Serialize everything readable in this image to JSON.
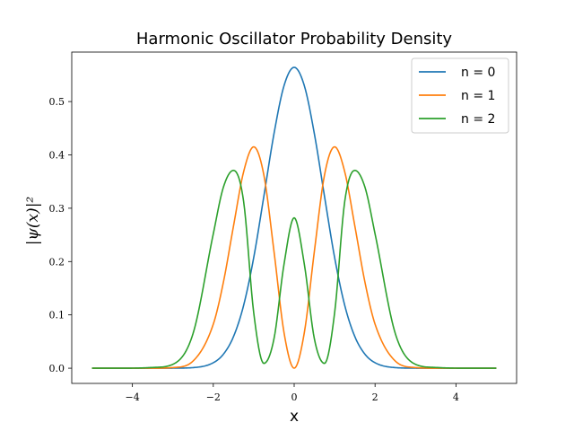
{
  "chart_data": {
    "type": "line",
    "title": "Harmonic Oscillator Probability Density",
    "xlabel": "x",
    "ylabel": "|ψ(x)|²",
    "xlim": [
      -5.5,
      5.5
    ],
    "ylim": [
      -0.0285,
      0.5928
    ],
    "xticks": [
      -4,
      -2,
      0,
      2,
      4
    ],
    "xtick_labels": [
      "−4",
      "−2",
      "0",
      "2",
      "4"
    ],
    "yticks": [
      0.0,
      0.1,
      0.2,
      0.3,
      0.4,
      0.5
    ],
    "ytick_labels": [
      "0.0",
      "0.1",
      "0.2",
      "0.3",
      "0.4",
      "0.5"
    ],
    "grid": false,
    "legend_position": "top-right",
    "x_range": [
      -5,
      5
    ],
    "series": [
      {
        "name": "n = 0",
        "color": "#1f77b4",
        "x": [
          -5,
          -4.5,
          -4,
          -3.5,
          -3,
          -2.5,
          -2,
          -1.75,
          -1.5,
          -1.25,
          -1,
          -0.75,
          -0.5,
          -0.25,
          0,
          0.25,
          0.5,
          0.75,
          1,
          1.25,
          1.5,
          1.75,
          2,
          2.5,
          3,
          3.5,
          4,
          4.5,
          5
        ],
        "y": [
          0.0,
          0.0,
          0.0,
          0.0,
          0.0001,
          0.0011,
          0.0103,
          0.0263,
          0.0593,
          0.1179,
          0.2076,
          0.3222,
          0.4393,
          0.53,
          0.5642,
          0.53,
          0.4393,
          0.3222,
          0.2076,
          0.1179,
          0.0593,
          0.0263,
          0.0103,
          0.0011,
          0.0001,
          0.0,
          0.0,
          0.0,
          0.0
        ]
      },
      {
        "name": "n = 1",
        "color": "#ff7f0e",
        "x": [
          -5,
          -4.5,
          -4,
          -3.5,
          -3,
          -2.5,
          -2,
          -1.75,
          -1.5,
          -1.25,
          -1,
          -0.75,
          -0.5,
          -0.25,
          0,
          0.25,
          0.5,
          0.75,
          1,
          1.25,
          1.5,
          1.75,
          2,
          2.5,
          3,
          3.5,
          4,
          4.5,
          5
        ],
        "y": [
          0.0,
          0.0,
          0.0,
          0.0,
          0.0012,
          0.0135,
          0.0826,
          0.1613,
          0.2667,
          0.3684,
          0.4151,
          0.3624,
          0.2197,
          0.0663,
          0.0,
          0.0663,
          0.2197,
          0.3624,
          0.4151,
          0.3684,
          0.2667,
          0.1613,
          0.0826,
          0.0135,
          0.0012,
          0.0,
          0.0,
          0.0,
          0.0
        ]
      },
      {
        "name": "n = 2",
        "color": "#2ca02c",
        "x": [
          -5,
          -4.5,
          -4,
          -3.5,
          -3,
          -2.5,
          -2,
          -1.75,
          -1.5,
          -1.25,
          -1,
          -0.75,
          -0.5,
          -0.25,
          0,
          0.25,
          0.5,
          0.75,
          1,
          1.25,
          1.5,
          1.75,
          2,
          2.5,
          3,
          3.5,
          4,
          4.5,
          5
        ],
        "y": [
          0.0,
          0.0,
          0.0001,
          0.0014,
          0.0073,
          0.0652,
          0.252,
          0.3395,
          0.371,
          0.3126,
          0.1038,
          0.0091,
          0.0549,
          0.1955,
          0.2821,
          0.1955,
          0.0549,
          0.0091,
          0.1038,
          0.3126,
          0.371,
          0.3395,
          0.252,
          0.0652,
          0.0073,
          0.0014,
          0.0001,
          0.0,
          0.0
        ]
      }
    ]
  }
}
